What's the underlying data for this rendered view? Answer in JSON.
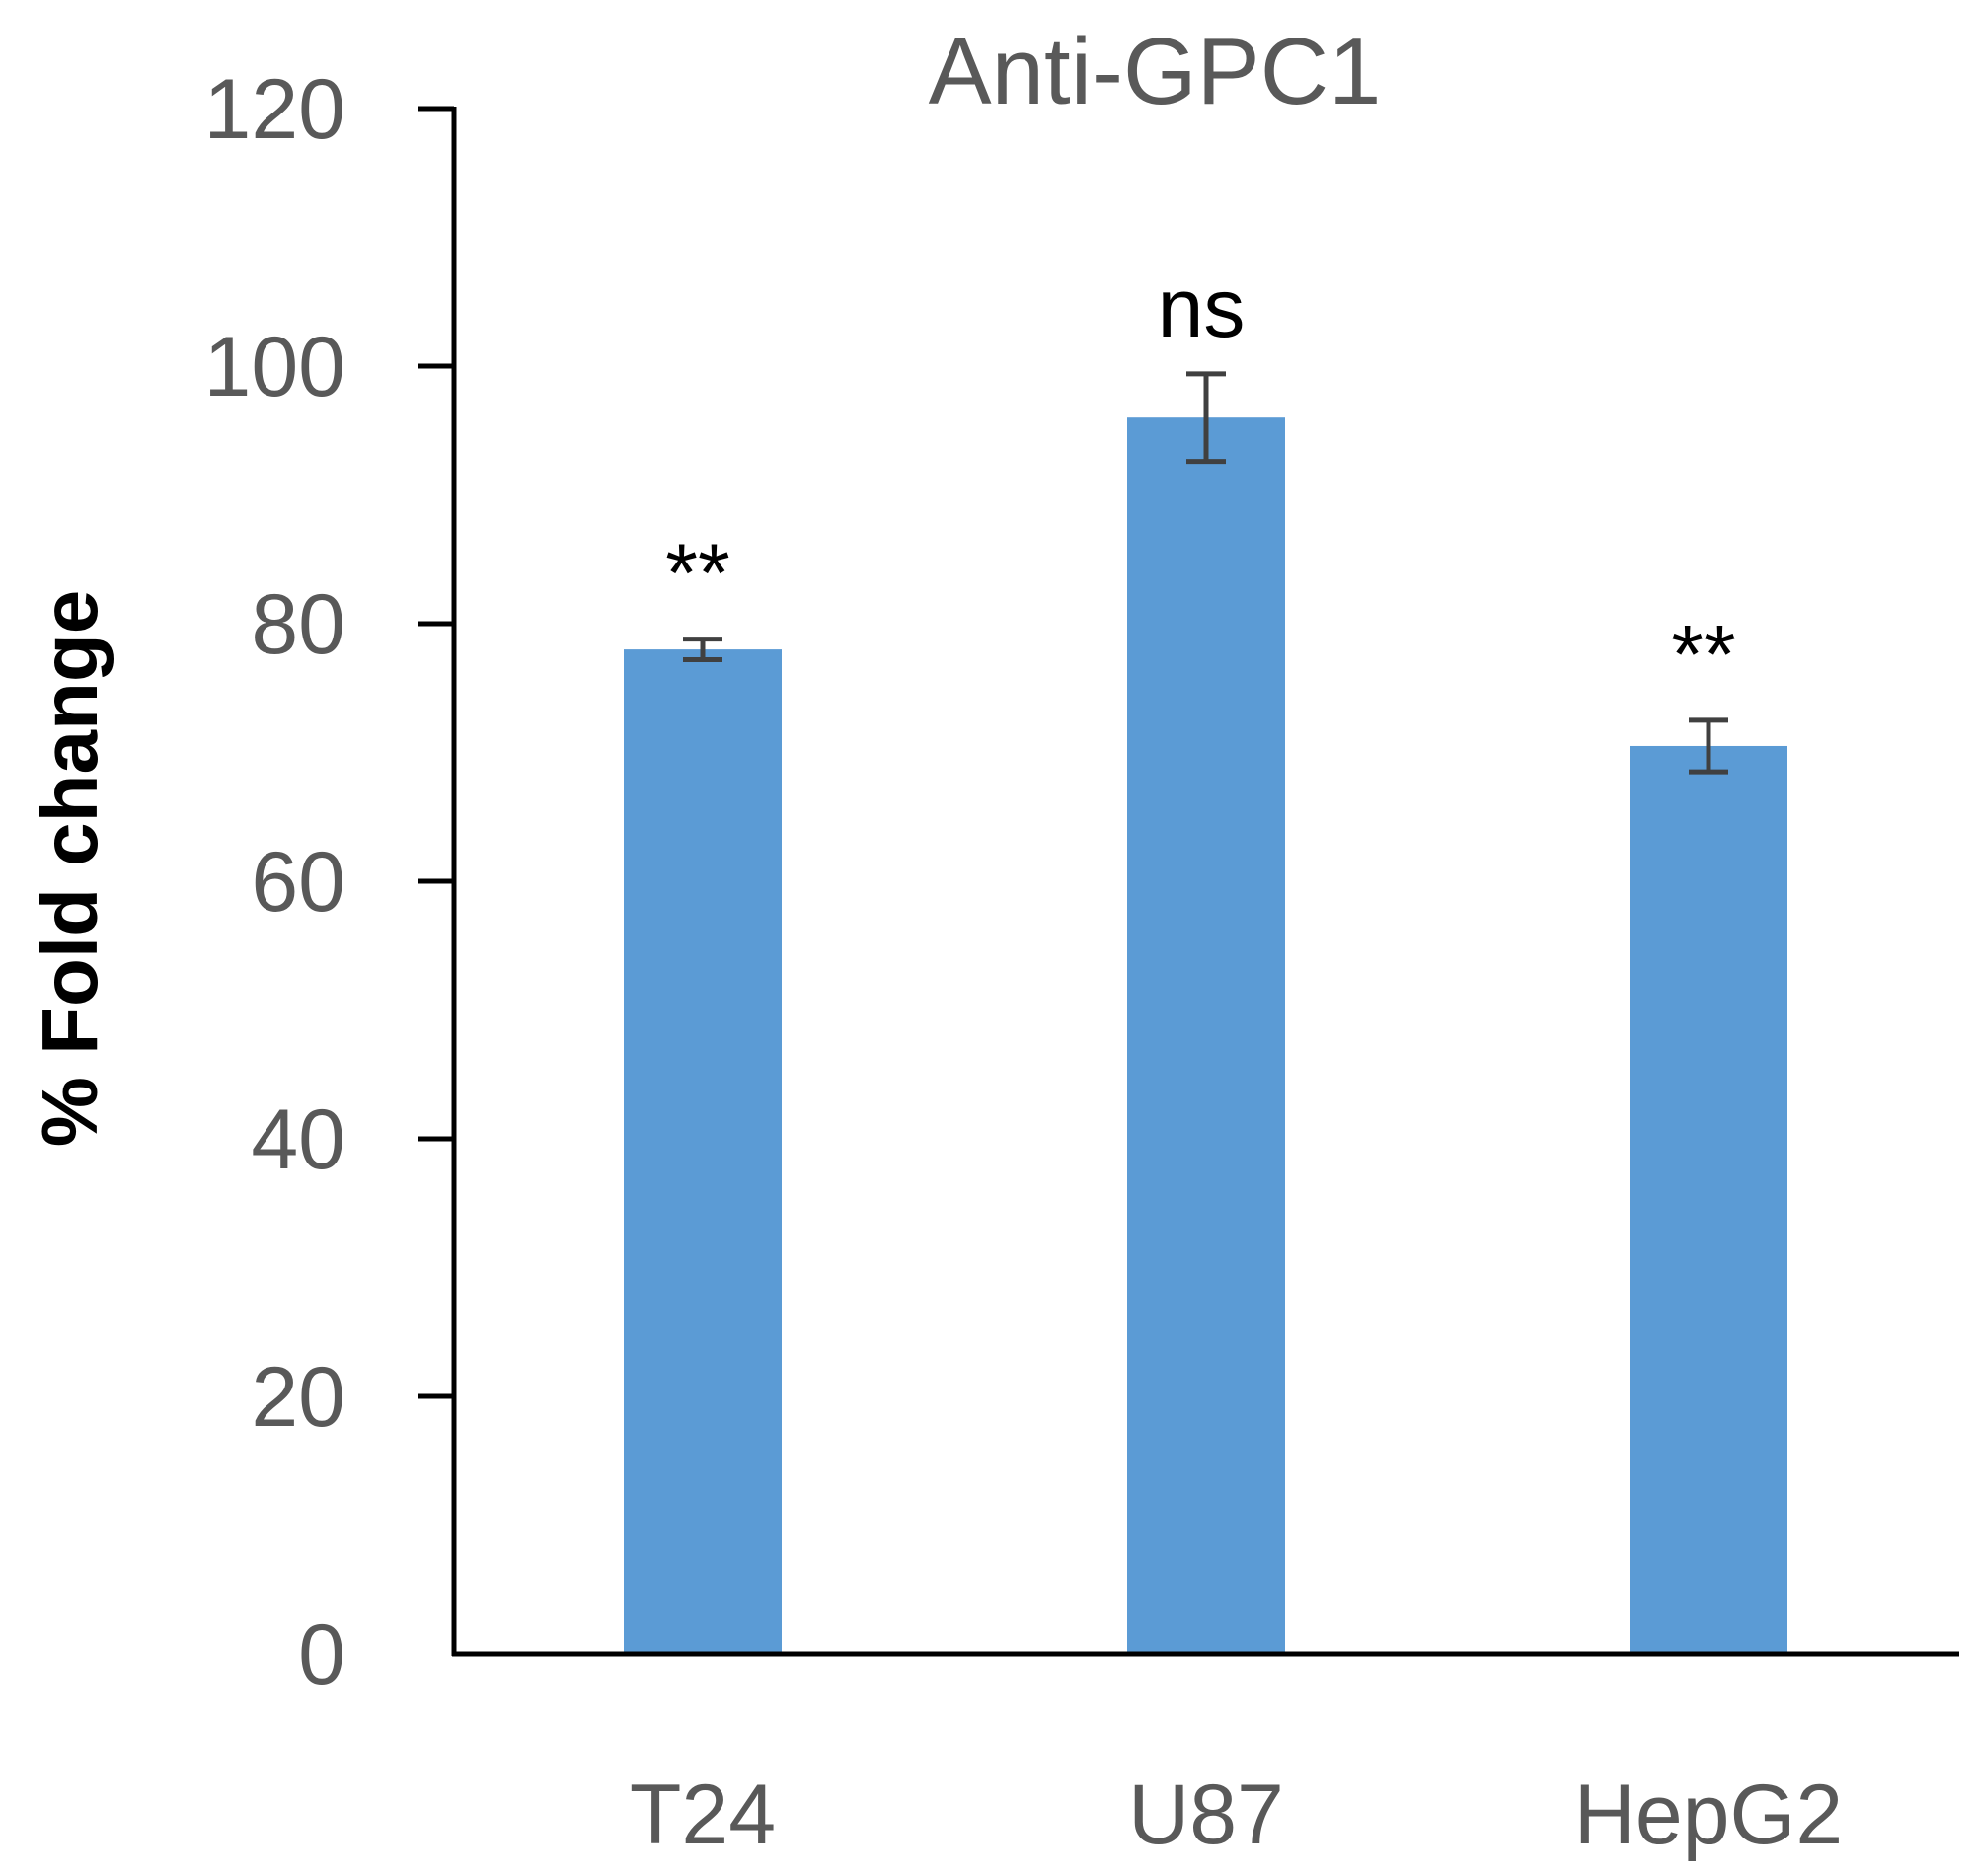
{
  "chart_data": {
    "type": "bar",
    "title": "Anti-GPC1",
    "ylabel": "% Fold change",
    "xlabel": "",
    "categories": [
      "T24",
      "U87",
      "HepG2"
    ],
    "values": [
      78,
      96,
      70.5
    ],
    "errors": [
      0.8,
      3.4,
      2.0
    ],
    "annotations": [
      "**",
      "ns",
      "**"
    ],
    "ylim": [
      0,
      120
    ],
    "yticks": [
      0,
      20,
      40,
      60,
      80,
      100,
      120
    ],
    "grid": false,
    "bar_color": "#5b9bd5",
    "error_color": "#404040",
    "axis_color": "#000000"
  }
}
